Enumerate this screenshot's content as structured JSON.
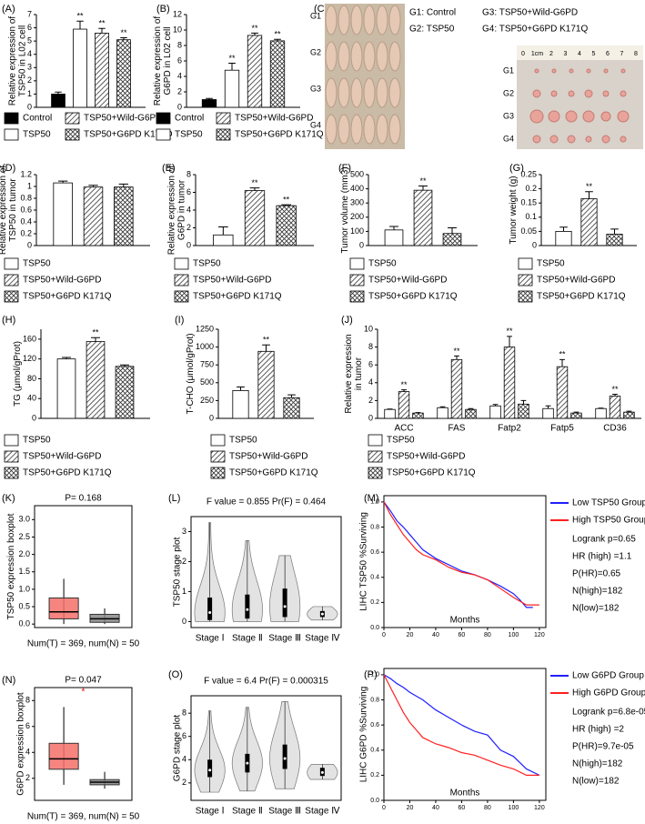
{
  "chart_data": [
    {
      "type": "bar",
      "label": "(A)",
      "ylabel": [
        "Relative expression of",
        "TSP50 in L02 cell"
      ],
      "ylim": [
        0,
        7
      ],
      "yticks": [
        0,
        1,
        2,
        3,
        4,
        5,
        6,
        7
      ],
      "legend_columns": 2,
      "categories": [
        null
      ],
      "series": [
        {
          "name": "Control",
          "fill": "black",
          "values": [
            1
          ],
          "errors": [
            0.15
          ],
          "sig": [
            null
          ]
        },
        {
          "name": "TSP50",
          "fill": "white",
          "values": [
            5.9
          ],
          "errors": [
            0.6
          ],
          "sig": [
            "**"
          ]
        },
        {
          "name": "TSP50+Wild-G6PD",
          "fill": "hatch",
          "values": [
            5.6
          ],
          "errors": [
            0.35
          ],
          "sig": [
            "**"
          ]
        },
        {
          "name": "TSP50+G6PD K171Q",
          "fill": "cross",
          "values": [
            5.1
          ],
          "errors": [
            0.15
          ],
          "sig": [
            "**"
          ]
        }
      ]
    },
    {
      "type": "bar",
      "label": "(B)",
      "ylabel": [
        "Relative expression of",
        "G6PD in L02 cell"
      ],
      "ylim": [
        0,
        12
      ],
      "yticks": [
        0,
        2,
        4,
        6,
        8,
        10,
        12
      ],
      "legend_columns": 2,
      "categories": [
        null
      ],
      "series": [
        {
          "name": "Control",
          "fill": "black",
          "values": [
            1
          ],
          "errors": [
            0.15
          ],
          "sig": [
            null
          ]
        },
        {
          "name": "TSP50",
          "fill": "white",
          "values": [
            4.8
          ],
          "errors": [
            0.9
          ],
          "sig": [
            "**"
          ]
        },
        {
          "name": "TSP50+Wild-G6PD",
          "fill": "hatch",
          "values": [
            9.3
          ],
          "errors": [
            0.3
          ],
          "sig": [
            "**"
          ]
        },
        {
          "name": "TSP50+G6PD K171Q",
          "fill": "cross",
          "values": [
            8.6
          ],
          "errors": [
            0.2
          ],
          "sig": [
            "**"
          ]
        }
      ]
    },
    {
      "type": "image",
      "label": "(C)",
      "row_labels": [
        "G1",
        "G2",
        "G3",
        "G4"
      ],
      "legend": [
        "G1: Control",
        "G3: TSP50+Wild-G6PD",
        "G2: TSP50",
        "G4: TSP50+G6PD K171Q"
      ],
      "tumor_labels": [
        "G1",
        "G2",
        "G3",
        "G4"
      ],
      "ruler": [
        "0",
        "1cm",
        "2",
        "3",
        "4",
        "5",
        "6",
        "7",
        "8"
      ]
    },
    {
      "type": "bar",
      "label": "(D)",
      "ylabel": [
        "Relative expression of",
        "TSP50 in tumor"
      ],
      "ylim": [
        0,
        1.2
      ],
      "yticks": [
        0,
        0.2,
        0.4,
        0.6,
        0.8,
        1,
        1.2
      ],
      "categories": [
        null
      ],
      "series": [
        {
          "name": "TSP50",
          "fill": "white",
          "values": [
            1.06
          ],
          "errors": [
            0.03
          ],
          "sig": [
            null
          ]
        },
        {
          "name": "TSP50+Wild-G6PD",
          "fill": "hatch",
          "values": [
            0.99
          ],
          "errors": [
            0.03
          ],
          "sig": [
            null
          ]
        },
        {
          "name": "TSP50+G6PD K171Q",
          "fill": "cross",
          "values": [
            0.99
          ],
          "errors": [
            0.05
          ],
          "sig": [
            null
          ]
        }
      ]
    },
    {
      "type": "bar",
      "label": "(E)",
      "ylabel": [
        "Relative expression of",
        "G6PD in tumor"
      ],
      "ylim": [
        0,
        8
      ],
      "yticks": [
        0,
        2,
        4,
        6,
        8
      ],
      "categories": [
        null
      ],
      "series": [
        {
          "name": "TSP50",
          "fill": "white",
          "values": [
            1.2
          ],
          "errors": [
            0.9
          ],
          "sig": [
            null
          ]
        },
        {
          "name": "TSP50+Wild-G6PD",
          "fill": "hatch",
          "values": [
            6.2
          ],
          "errors": [
            0.3
          ],
          "sig": [
            "**"
          ]
        },
        {
          "name": "TSP50+G6PD K171Q",
          "fill": "cross",
          "values": [
            4.5
          ],
          "errors": [
            0.1
          ],
          "sig": [
            "**"
          ]
        }
      ]
    },
    {
      "type": "bar",
      "label": "(F)",
      "ylabel": [
        "Tumor volume (mm3)"
      ],
      "ylim": [
        0,
        500
      ],
      "yticks": [
        0,
        100,
        200,
        300,
        400,
        500
      ],
      "categories": [
        null
      ],
      "series": [
        {
          "name": "TSP50",
          "fill": "white",
          "values": [
            110
          ],
          "errors": [
            25
          ],
          "sig": [
            null
          ]
        },
        {
          "name": "TSP50+Wild-G6PD",
          "fill": "hatch",
          "values": [
            390
          ],
          "errors": [
            30
          ],
          "sig": [
            "**"
          ]
        },
        {
          "name": "TSP50+G6PD K171Q",
          "fill": "cross",
          "values": [
            85
          ],
          "errors": [
            40
          ],
          "sig": [
            null
          ]
        }
      ]
    },
    {
      "type": "bar",
      "label": "(G)",
      "ylabel": [
        "Tumor weight (g)"
      ],
      "ylim": [
        0,
        0.25
      ],
      "yticks": [
        0,
        0.05,
        0.1,
        0.15,
        0.2,
        0.25
      ],
      "categories": [
        null
      ],
      "series": [
        {
          "name": "TSP50",
          "fill": "white",
          "values": [
            0.05
          ],
          "errors": [
            0.015
          ],
          "sig": [
            null
          ]
        },
        {
          "name": "TSP50+Wild-G6PD",
          "fill": "hatch",
          "values": [
            0.165
          ],
          "errors": [
            0.025
          ],
          "sig": [
            "**"
          ]
        },
        {
          "name": "TSP50+G6PD K171Q",
          "fill": "cross",
          "values": [
            0.04
          ],
          "errors": [
            0.018
          ],
          "sig": [
            null
          ]
        }
      ]
    },
    {
      "type": "bar",
      "label": "(H)",
      "ylabel": [
        "TG (μmol/gProt)"
      ],
      "ylim": [
        0,
        180
      ],
      "yticks": [
        0,
        40,
        80,
        120,
        160
      ],
      "categories": [
        null
      ],
      "series": [
        {
          "name": "TSP50",
          "fill": "white",
          "values": [
            120
          ],
          "errors": [
            3
          ],
          "sig": [
            null
          ]
        },
        {
          "name": "TSP50+Wild-G6PD",
          "fill": "hatch",
          "values": [
            155
          ],
          "errors": [
            8
          ],
          "sig": [
            "**"
          ]
        },
        {
          "name": "TSP50+G6PD K171Q",
          "fill": "cross",
          "values": [
            105
          ],
          "errors": [
            3
          ],
          "sig": [
            null
          ]
        }
      ]
    },
    {
      "type": "bar",
      "label": "(I)",
      "ylabel": [
        "T-CHO (μmol/gProt)"
      ],
      "ylim": [
        0,
        1250
      ],
      "yticks": [
        0,
        250,
        500,
        750,
        1000,
        1250
      ],
      "categories": [
        null
      ],
      "series": [
        {
          "name": "TSP50",
          "fill": "white",
          "values": [
            390
          ],
          "errors": [
            50
          ],
          "sig": [
            null
          ]
        },
        {
          "name": "TSP50+Wild-G6PD",
          "fill": "hatch",
          "values": [
            940
          ],
          "errors": [
            90
          ],
          "sig": [
            "**"
          ]
        },
        {
          "name": "TSP50+G6PD K171Q",
          "fill": "cross",
          "values": [
            290
          ],
          "errors": [
            40
          ],
          "sig": [
            null
          ]
        }
      ]
    },
    {
      "type": "bar",
      "label": "(J)",
      "ylabel": [
        "Relative expression",
        "in tumor"
      ],
      "ylim": [
        0,
        10
      ],
      "yticks": [
        0,
        2,
        4,
        6,
        8,
        10
      ],
      "categories": [
        "ACC",
        "FAS",
        "Fatp2",
        "Fatp5",
        "CD36"
      ],
      "series": [
        {
          "name": "TSP50",
          "fill": "white",
          "values": [
            1,
            1.2,
            1.4,
            1.1,
            1.1
          ],
          "errors": [
            0.05,
            0.1,
            0.15,
            0.3,
            0.05
          ],
          "sig": [
            null,
            null,
            null,
            null,
            null
          ]
        },
        {
          "name": "TSP50+Wild-G6PD",
          "fill": "hatch",
          "values": [
            3,
            6.6,
            8,
            5.8,
            2.5
          ],
          "errors": [
            0.2,
            0.4,
            1.2,
            0.8,
            0.2
          ],
          "sig": [
            "**",
            "**",
            "**",
            "**",
            "**"
          ]
        },
        {
          "name": "TSP50+G6PD K171Q",
          "fill": "cross",
          "values": [
            0.6,
            1,
            1.6,
            0.6,
            0.7
          ],
          "errors": [
            0.05,
            0.1,
            0.4,
            0.1,
            0.1
          ],
          "sig": [
            null,
            null,
            null,
            null,
            null
          ]
        }
      ]
    },
    {
      "type": "boxplot",
      "label": "(K)",
      "title": "P= 0.168",
      "ylabel": [
        "TSP50 expression boxplot"
      ],
      "xlabel": "Num(T) = 369, num(N) = 50",
      "ylim": [
        -0.1,
        3.4
      ],
      "yticks": [
        {
          "value": 0,
          "label": "0.0"
        },
        {
          "value": 0.5,
          "label": "0.5"
        },
        {
          "value": 1,
          "label": "1.0"
        },
        {
          "value": 1.5,
          "label": "1.5"
        },
        {
          "value": 2,
          "label": "2.0"
        },
        {
          "value": 2.5,
          "label": "2.5"
        },
        {
          "value": 3,
          "label": "3.0"
        }
      ],
      "boxes": [
        {
          "color": "#f4706a",
          "lo": 0,
          "q1": 0.15,
          "median": 0.35,
          "q3": 0.75,
          "hi": 1.3
        },
        {
          "color": "#888888",
          "lo": 0,
          "q1": 0.05,
          "median": 0.15,
          "q3": 0.28,
          "hi": 0.45
        }
      ]
    },
    {
      "type": "violin",
      "label": "(L)",
      "title": "F value = 0.855   Pr(F) = 0.464",
      "ylabel": [
        "TSP50 stage plot"
      ],
      "ylim": [
        -0.2,
        3.5
      ],
      "yticks": [
        0,
        1,
        2,
        3
      ],
      "categories": [
        "Stage Ⅰ",
        "Stage Ⅱ",
        "Stage Ⅲ",
        "Stage Ⅳ"
      ],
      "min": [
        0,
        0,
        0,
        0.05
      ],
      "q1": [
        0.05,
        0.1,
        0.15,
        0.15
      ],
      "median": [
        0.3,
        0.4,
        0.5,
        0.25
      ],
      "q3": [
        0.8,
        0.9,
        1.1,
        0.35
      ],
      "max": [
        3.3,
        2.7,
        2.2,
        0.5
      ]
    },
    {
      "type": "survival",
      "label": "(M)",
      "ylabel": [
        "LIHC TSP50 %Surviving"
      ],
      "xlabel": "Months",
      "xlim": [
        0,
        125
      ],
      "xticks": [
        0,
        20,
        40,
        60,
        80,
        100,
        120
      ],
      "ylim": [
        0,
        1.05
      ],
      "yticks": [
        {
          "value": 0,
          "label": "0.0"
        },
        {
          "value": 0.2,
          "label": "0.2"
        },
        {
          "value": 0.4,
          "label": "0.4"
        },
        {
          "value": 0.6,
          "label": "0.6"
        },
        {
          "value": 0.8,
          "label": "0.8"
        },
        {
          "value": 1,
          "label": "1.0"
        }
      ],
      "series": [
        {
          "name": "Low TSP50 Group",
          "color": "#1f1fff",
          "x": [
            0,
            5,
            10,
            15,
            20,
            25,
            30,
            40,
            50,
            60,
            70,
            80,
            90,
            100,
            105,
            110,
            115
          ],
          "values": [
            1,
            0.93,
            0.85,
            0.8,
            0.74,
            0.68,
            0.62,
            0.55,
            0.5,
            0.45,
            0.42,
            0.38,
            0.33,
            0.27,
            0.22,
            0.16,
            0.16
          ]
        },
        {
          "name": "High TSP50 Group",
          "color": "#ff2020",
          "x": [
            0,
            5,
            10,
            15,
            20,
            25,
            30,
            40,
            50,
            60,
            70,
            80,
            90,
            100,
            110,
            120
          ],
          "values": [
            1,
            0.9,
            0.82,
            0.74,
            0.68,
            0.62,
            0.58,
            0.54,
            0.48,
            0.44,
            0.42,
            0.38,
            0.31,
            0.24,
            0.18,
            0.18
          ]
        }
      ],
      "annotations": [
        "Logrank p=0.65",
        "HR (high) =1.1",
        "P(HR)=0.65",
        "N(high)=182",
        "N(low)=182"
      ]
    },
    {
      "type": "boxplot",
      "label": "(N)",
      "title": "P= 0.047",
      "star": "*",
      "ylabel": [
        "G6PD expression boxplot"
      ],
      "xlabel": "Num(T) = 369, num(N) = 50",
      "ylim": [
        0.3,
        9
      ],
      "yticks": [
        2,
        4,
        6,
        8
      ],
      "boxes": [
        {
          "color": "#f4706a",
          "lo": 1.5,
          "q1": 2.7,
          "median": 3.5,
          "q3": 4.7,
          "hi": 7.5
        },
        {
          "color": "#888888",
          "lo": 1.2,
          "q1": 1.5,
          "median": 1.7,
          "q3": 1.9,
          "hi": 2.5
        }
      ]
    },
    {
      "type": "violin",
      "label": "(O)",
      "title": "F value = 6.4   Pr(F) = 0.000315",
      "ylabel": [
        "G6PD stage plot"
      ],
      "ylim": [
        0.5,
        9.5
      ],
      "yticks": [
        2,
        4,
        6,
        8
      ],
      "categories": [
        "Stage Ⅰ",
        "Stage Ⅱ",
        "Stage Ⅲ",
        "Stage Ⅳ"
      ],
      "min": [
        1.2,
        1.3,
        1.5,
        2.3
      ],
      "q1": [
        2.5,
        2.9,
        3.2,
        2.6
      ],
      "median": [
        3.1,
        3.7,
        4.1,
        2.9
      ],
      "q3": [
        4,
        4.5,
        5.3,
        3.3
      ],
      "max": [
        8.2,
        8.5,
        9,
        3.6
      ]
    },
    {
      "type": "survival",
      "label": "(P)",
      "ylabel": [
        "LIHC G6PD %Surviving"
      ],
      "xlabel": "Months",
      "xlim": [
        0,
        125
      ],
      "xticks": [
        0,
        20,
        40,
        60,
        80,
        100,
        120
      ],
      "ylim": [
        0,
        1.05
      ],
      "yticks": [
        {
          "value": 0,
          "label": "0.0"
        },
        {
          "value": 0.2,
          "label": "0.2"
        },
        {
          "value": 0.4,
          "label": "0.4"
        },
        {
          "value": 0.6,
          "label": "0.6"
        },
        {
          "value": 0.8,
          "label": "0.8"
        },
        {
          "value": 1,
          "label": "1.0"
        }
      ],
      "series": [
        {
          "name": "Low G6PD Group",
          "color": "#1f1fff",
          "x": [
            0,
            5,
            10,
            15,
            20,
            25,
            30,
            40,
            50,
            60,
            70,
            80,
            90,
            100,
            110,
            120
          ],
          "values": [
            1,
            0.97,
            0.93,
            0.9,
            0.86,
            0.83,
            0.8,
            0.72,
            0.66,
            0.6,
            0.55,
            0.52,
            0.4,
            0.35,
            0.25,
            0.2
          ]
        },
        {
          "name": "High G6PD Group",
          "color": "#ff2020",
          "x": [
            0,
            5,
            10,
            15,
            20,
            25,
            30,
            40,
            50,
            60,
            70,
            80,
            90,
            100,
            110,
            120
          ],
          "values": [
            1,
            0.9,
            0.8,
            0.7,
            0.62,
            0.56,
            0.5,
            0.45,
            0.42,
            0.38,
            0.36,
            0.32,
            0.28,
            0.25,
            0.2,
            0.2
          ]
        }
      ],
      "annotations": [
        "Logrank p=6.8e-05",
        "HR (high) =2",
        "P(HR)=9.7e-05",
        "N(high)=182",
        "N(low)=182"
      ]
    }
  ]
}
